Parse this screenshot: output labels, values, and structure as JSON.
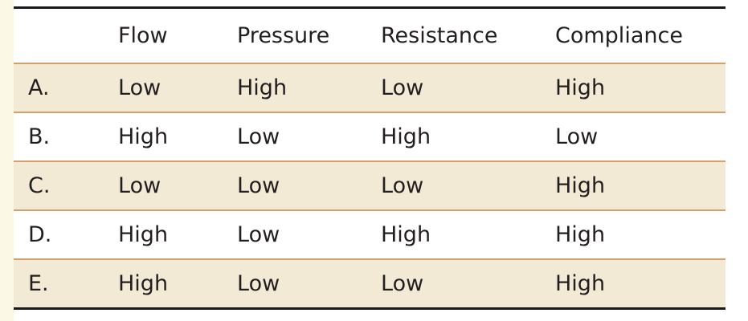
{
  "table": {
    "headers": [
      "",
      "Flow",
      "Pressure",
      "Resistance",
      "Compliance"
    ],
    "rows": [
      {
        "label": "A.",
        "flow": "Low",
        "pressure": "High",
        "resistance": "Low",
        "compliance": "High"
      },
      {
        "label": "B.",
        "flow": "High",
        "pressure": "Low",
        "resistance": "High",
        "compliance": "Low"
      },
      {
        "label": "C.",
        "flow": "Low",
        "pressure": "Low",
        "resistance": "Low",
        "compliance": "High"
      },
      {
        "label": "D.",
        "flow": "High",
        "pressure": "Low",
        "resistance": "High",
        "compliance": "High"
      },
      {
        "label": "E.",
        "flow": "High",
        "pressure": "Low",
        "resistance": "Low",
        "compliance": "High"
      }
    ]
  },
  "colors": {
    "shaded_row": "#f2ead4",
    "rule_color": "#d2a06c",
    "text_color": "#231f20"
  }
}
